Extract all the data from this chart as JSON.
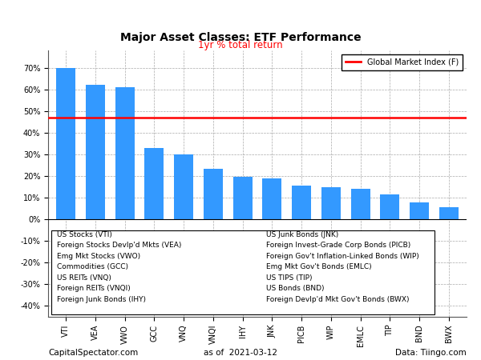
{
  "title": "Major Asset Classes: ETF Performance",
  "subtitle": "1yr % total return",
  "categories": [
    "VTI",
    "VEA",
    "VWO",
    "GCC",
    "VNQ",
    "VNQI",
    "IHY",
    "JNK",
    "PICB",
    "WIP",
    "EMLC",
    "TIP",
    "BND",
    "BWX"
  ],
  "values": [
    70.0,
    62.0,
    61.0,
    33.0,
    30.0,
    23.5,
    19.5,
    19.0,
    15.5,
    15.0,
    14.0,
    11.5,
    8.0,
    5.5
  ],
  "bar_color": "#3399FF",
  "gmi_value": 47.0,
  "gmi_color": "#FF0000",
  "gmi_label": "Global Market Index (F)",
  "yticks": [
    -40,
    -30,
    -20,
    -10,
    0,
    10,
    20,
    30,
    40,
    50,
    60,
    70
  ],
  "ylim": [
    -45,
    78
  ],
  "legend_box_left_col": [
    "US Stocks (VTI)",
    "Foreign Stocks Devlp'd Mkts (VEA)",
    "Emg Mkt Stocks (VWO)",
    "Commodities (GCC)",
    "US REITs (VNQ)",
    "Foreign REITs (VNQI)",
    "Foreign Junk Bonds (IHY)"
  ],
  "legend_box_right_col": [
    "US Junk Bonds (JNK)",
    "Foreign Invest-Grade Corp Bonds (PICB)",
    "Foreign Gov't Inflation-Linked Bonds (WIP)",
    "Emg Mkt Gov't Bonds (EMLC)",
    "US TIPS (TIP)",
    "US Bonds (BND)",
    "Foreign Devlp'd Mkt Gov't Bonds (BWX)"
  ],
  "footer_left": "CapitalSpectator.com",
  "footer_center": "as of  2021-03-12",
  "footer_right": "Data: Tiingo.com",
  "background_color": "#FFFFFF",
  "grid_color": "#AAAAAA",
  "title_fontsize": 10,
  "subtitle_fontsize": 8.5,
  "tick_fontsize": 7,
  "footer_fontsize": 7.5,
  "legend_fontsize": 6.5
}
